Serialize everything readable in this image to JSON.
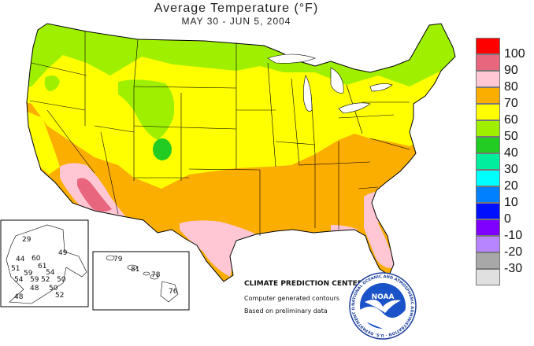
{
  "header": {
    "title": "Average Temperature (°F)",
    "subtitle": "MAY 30 - JUN  5, 2004"
  },
  "legend": {
    "items": [
      {
        "label": "100",
        "color": "#ff0000"
      },
      {
        "label": "90",
        "color": "#e8677f"
      },
      {
        "label": "80",
        "color": "#ffc7d4"
      },
      {
        "label": "70",
        "color": "#fbad00"
      },
      {
        "label": "60",
        "color": "#ffff00"
      },
      {
        "label": "50",
        "color": "#9fef00"
      },
      {
        "label": "40",
        "color": "#22cc22"
      },
      {
        "label": "30",
        "color": "#00ef9f"
      },
      {
        "label": "20",
        "color": "#00ffff"
      },
      {
        "label": "10",
        "color": "#0080ff"
      },
      {
        "label": "0",
        "color": "#0010ff"
      },
      {
        "label": "-10",
        "color": "#8000ff"
      },
      {
        "label": "-20",
        "color": "#b785ff"
      },
      {
        "label": "-30",
        "color": "#a8a8a8"
      },
      {
        "label": "",
        "color": "#e0e0e0"
      }
    ]
  },
  "alaska_values": [
    "29",
    "49",
    "44",
    "60",
    "61",
    "51",
    "59",
    "54",
    "54",
    "59",
    "52",
    "50",
    "48",
    "50",
    "52",
    "48"
  ],
  "hawaii_values": [
    "79",
    "81",
    "78",
    "76"
  ],
  "credits": {
    "line1": "CLIMATE PREDICTION CENTER, NOAA",
    "line2": "Computer generated contours",
    "line3": "Based on preliminary data"
  },
  "logo": {
    "text": "NOAA",
    "ring_text": "NATIONAL OCEANIC AND ATMOSPHERIC ADMINISTRATION · U.S. DEPARTMENT OF COMMERCE"
  }
}
